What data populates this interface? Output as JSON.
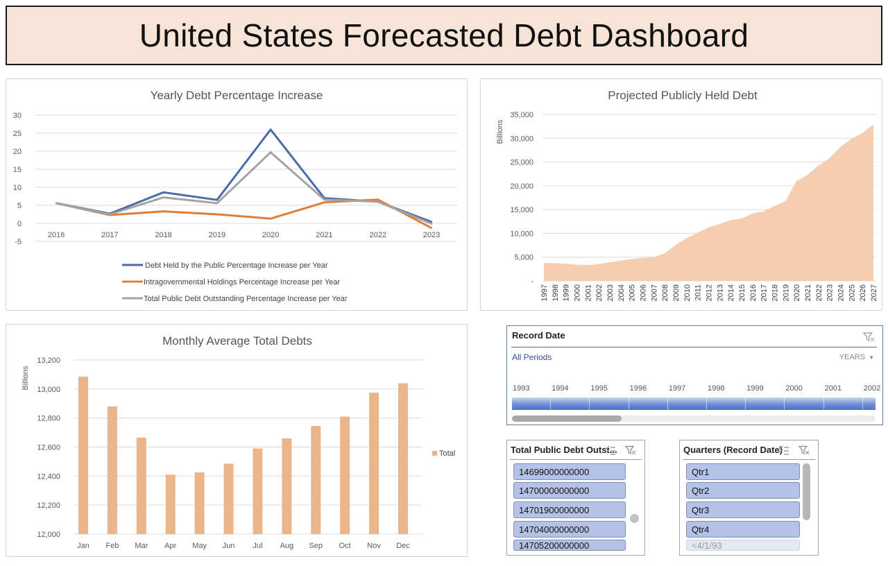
{
  "dashboard": {
    "title": "United States Forecasted Debt Dashboard"
  },
  "chart_data": [
    {
      "id": "yearly",
      "type": "line",
      "title": "Yearly Debt Percentage Increase",
      "categories": [
        "2016",
        "2017",
        "2018",
        "2019",
        "2020",
        "2021",
        "2022",
        "2023"
      ],
      "ylim": [
        -5,
        30
      ],
      "yticks": [
        -5,
        0,
        5,
        10,
        15,
        20,
        25,
        30
      ],
      "grid": true,
      "legend": "bottom",
      "series": [
        {
          "name": "Debt Held by the Public Percentage Increase per Year",
          "color": "#4a6aa9",
          "values": [
            5.6,
            2.7,
            8.6,
            6.5,
            26.0,
            7.0,
            6.0,
            0.4
          ]
        },
        {
          "name": "Intragovernmental Holdings Percentage Increase per Year",
          "color": "#e07e37",
          "values": [
            5.6,
            2.3,
            3.3,
            2.5,
            1.3,
            5.8,
            6.6,
            -1.3
          ]
        },
        {
          "name": "Total Public Debt Outstanding Percentage Increase per Year",
          "color": "#a3a3a3",
          "values": [
            5.6,
            2.5,
            7.2,
            5.6,
            19.7,
            6.6,
            6.0,
            -0.1
          ]
        }
      ]
    },
    {
      "id": "projected",
      "type": "area",
      "title": "Projected Publicly Held Debt",
      "ylabel": "Billions",
      "color": "#f5cdaf",
      "ylim": [
        0,
        35000
      ],
      "yticks": [
        "-",
        "5,000",
        "10,000",
        "15,000",
        "20,000",
        "25,000",
        "30,000",
        "35,000"
      ],
      "grid": true,
      "x": [
        "1997",
        "1998",
        "1999",
        "2000",
        "2001",
        "2002",
        "2003",
        "2004",
        "2005",
        "2006",
        "2007",
        "2008",
        "2009",
        "2010",
        "2011",
        "2012",
        "2013",
        "2014",
        "2015",
        "2016",
        "2017",
        "2018",
        "2019",
        "2020",
        "2021",
        "2022",
        "2023",
        "2024",
        "2025",
        "2026",
        "2027"
      ],
      "values": [
        3770,
        3730,
        3630,
        3410,
        3320,
        3540,
        3910,
        4300,
        4590,
        4830,
        5030,
        5800,
        7540,
        9020,
        10130,
        11280,
        11980,
        12780,
        13120,
        14170,
        14670,
        15750,
        16800,
        21020,
        22300,
        24300,
        25800,
        28200,
        29900,
        31100,
        32900
      ]
    },
    {
      "id": "monthly",
      "type": "bar",
      "title": "Monthly Average Total Debts",
      "ylabel": "Billions",
      "color": "#ebb58c",
      "ylim": [
        12000,
        13200
      ],
      "yticks": [
        "12,000",
        "12,200",
        "12,400",
        "12,600",
        "12,800",
        "13,000",
        "13,200"
      ],
      "grid": true,
      "legend": "right",
      "categories": [
        "Jan",
        "Feb",
        "Mar",
        "Apr",
        "May",
        "Jun",
        "Jul",
        "Aug",
        "Sep",
        "Oct",
        "Nov",
        "Dec"
      ],
      "series": [
        {
          "name": "Total",
          "values": [
            13085,
            12880,
            12665,
            12410,
            12425,
            12485,
            12590,
            12660,
            12745,
            12810,
            12975,
            13040
          ]
        }
      ]
    }
  ],
  "timeline": {
    "title": "Record Date",
    "period_label": "All Periods",
    "level_label": "YEARS",
    "years": [
      "1993",
      "1994",
      "1995",
      "1996",
      "1997",
      "1998",
      "1999",
      "2000",
      "2001",
      "2002"
    ],
    "filter_icon": "clear-filter-icon"
  },
  "slicer_debt": {
    "title": "Total Public Debt Outst...",
    "items": [
      "14699000000000",
      "14700000000000",
      "14701900000000",
      "14704000000000",
      "14705200000000"
    ],
    "icons": [
      "multi-select-icon",
      "clear-filter-icon"
    ]
  },
  "slicer_quarters": {
    "title": "Quarters (Record Date)",
    "items": [
      "Qtr1",
      "Qtr2",
      "Qtr3",
      "Qtr4"
    ],
    "extra_item": "<4/1/93",
    "icons": [
      "multi-select-icon",
      "clear-filter-icon"
    ]
  }
}
